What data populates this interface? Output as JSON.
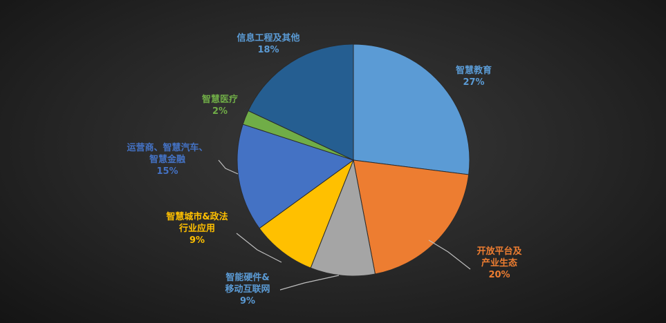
{
  "chart_data": {
    "type": "pie",
    "start_angle_deg": 0,
    "direction": "clockwise",
    "slices": [
      {
        "label": "智慧教育",
        "label_lines": [
          "智慧教育"
        ],
        "value_label": "27%",
        "value": 27,
        "color": "#5B9BD5"
      },
      {
        "label": "开放平台及产业生态",
        "label_lines": [
          "开放平台及",
          "产业生态"
        ],
        "value_label": "20%",
        "value": 20,
        "color": "#ED7D31"
      },
      {
        "label": "智能硬件&移动互联网",
        "label_lines": [
          "智能硬件&",
          "移动互联网"
        ],
        "value_label": "9%",
        "value": 9,
        "color": "#A5A5A5"
      },
      {
        "label": "智慧城市&政法行业应用",
        "label_lines": [
          "智慧城市&政法",
          "行业应用"
        ],
        "value_label": "9%",
        "value": 9,
        "color": "#FFC000"
      },
      {
        "label": "运营商、智慧汽车、智慧金融",
        "label_lines": [
          "运营商、智慧汽车、",
          "智慧金融"
        ],
        "value_label": "15%",
        "value": 15,
        "color": "#4472C4"
      },
      {
        "label": "智慧医疗",
        "label_lines": [
          "智慧医疗"
        ],
        "value_label": "2%",
        "value": 2,
        "color": "#70AD47"
      },
      {
        "label": "信息工程及其他",
        "label_lines": [
          "信息工程及其他"
        ],
        "value_label": "18%",
        "value": 18,
        "color": "#255E91"
      }
    ],
    "label_colors": [
      "#5B9BD5",
      "#ED7D31",
      "#5B9BD5",
      "#FFC000",
      "#4472C4",
      "#70AD47",
      "#5B9BD5"
    ]
  }
}
